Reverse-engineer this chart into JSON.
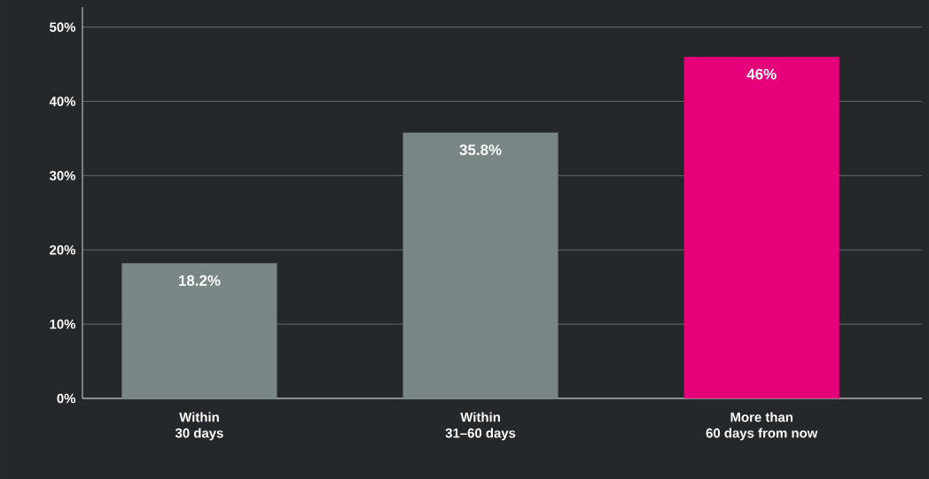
{
  "chart_data": {
    "type": "bar",
    "categories": [
      "Within\n30 days",
      "Within\n31–60 days",
      "More than\n60 days from now"
    ],
    "values": [
      18.2,
      35.8,
      46
    ],
    "colors": [
      "#7a8585",
      "#7a8585",
      "#e6007a"
    ],
    "value_labels": [
      "18.2%",
      "35.8%",
      "46%"
    ],
    "ylim": [
      0,
      52.7
    ],
    "yticks": [
      {
        "value": 0,
        "label": "0%"
      },
      {
        "value": 10,
        "label": "10%"
      },
      {
        "value": 20,
        "label": "20%"
      },
      {
        "value": 30,
        "label": "30%"
      },
      {
        "value": 40,
        "label": "40%"
      },
      {
        "value": 50,
        "label": "50%"
      }
    ],
    "grid": "y"
  }
}
